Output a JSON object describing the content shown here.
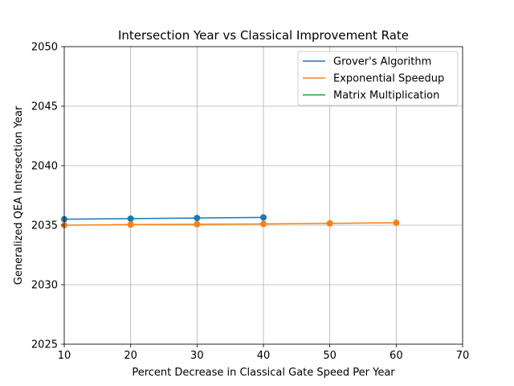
{
  "chart_data": {
    "type": "line",
    "title": "Intersection Year vs Classical Improvement Rate",
    "xlabel": "Percent Decrease in Classical Gate Speed Per Year",
    "ylabel": "Generalized QEA Intersection Year",
    "xlim": [
      10,
      70
    ],
    "ylim": [
      2025,
      2050
    ],
    "xticks": [
      10,
      20,
      30,
      40,
      50,
      60,
      70
    ],
    "yticks": [
      2025,
      2030,
      2035,
      2040,
      2045,
      2050
    ],
    "grid": true,
    "legend_position": "top-right",
    "series": [
      {
        "name": "Grover's Algorithm",
        "color": "#1f77b4",
        "x": [
          10,
          20,
          30,
          40
        ],
        "y": [
          2035.5,
          2035.55,
          2035.6,
          2035.65
        ]
      },
      {
        "name": "Exponential Speedup",
        "color": "#ff7f0e",
        "x": [
          10,
          20,
          30,
          40,
          50,
          60
        ],
        "y": [
          2035.0,
          2035.05,
          2035.08,
          2035.1,
          2035.15,
          2035.2
        ]
      },
      {
        "name": "Matrix Multiplication",
        "color": "#2ca02c",
        "x": [],
        "y": []
      }
    ]
  }
}
